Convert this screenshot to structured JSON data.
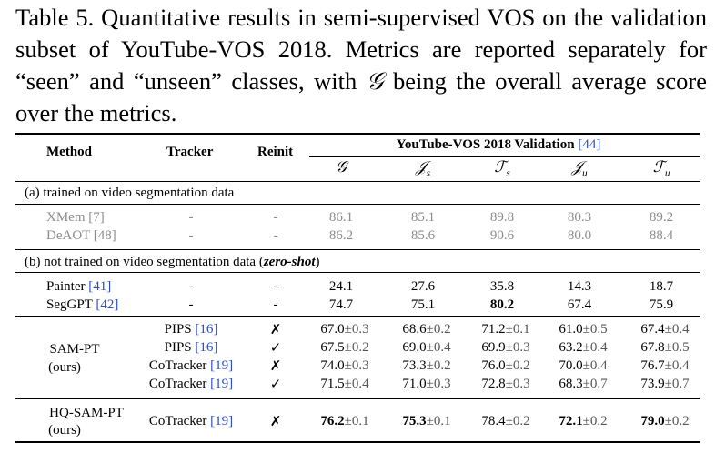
{
  "caption": {
    "label": "Table 5.",
    "text_1": " Quantitative results in semi-supervised VOS on the validation subset of YouTube-VOS 2018. Metrics are reported separately for “seen” and “unseen” classes, with ",
    "g_symbol": "𝒢",
    "text_2": " being the overall average score over the metrics."
  },
  "header": {
    "method": "Method",
    "tracker": "Tracker",
    "reinit": "Reinit",
    "group": "YouTube-VOS 2018 Validation",
    "group_cite": "[44]",
    "metrics": [
      {
        "sym": "𝒢",
        "sub": ""
      },
      {
        "sym": "𝒥",
        "sub": "s"
      },
      {
        "sym": "ℱ",
        "sub": "s"
      },
      {
        "sym": "𝒥",
        "sub": "u"
      },
      {
        "sym": "ℱ",
        "sub": "u"
      }
    ]
  },
  "section_a": "(a) trained on video segmentation data",
  "section_b_prefix": "(b) not trained on video segmentation data (",
  "section_b_em": "zero-shot",
  "section_b_suffix": ")",
  "rows_a": [
    {
      "method": "XMem",
      "cite": "[7]",
      "tracker": "-",
      "reinit": "-",
      "vals": [
        "86.1",
        "85.1",
        "89.8",
        "80.3",
        "89.2"
      ]
    },
    {
      "method": "DeAOT",
      "cite": "[48]",
      "tracker": "-",
      "reinit": "-",
      "vals": [
        "86.2",
        "85.6",
        "90.6",
        "80.0",
        "88.4"
      ]
    }
  ],
  "rows_b": [
    {
      "method": "Painter",
      "cite": "[41]",
      "tracker": "-",
      "reinit": "-",
      "vals": [
        "24.1",
        "27.6",
        "35.8",
        "14.3",
        "18.7"
      ]
    },
    {
      "method": "SegGPT",
      "cite": "[42]",
      "tracker": "-",
      "reinit": "-",
      "vals": [
        "74.7",
        "75.1",
        "80.2",
        "67.4",
        "75.9"
      ]
    }
  ],
  "sam_pt": {
    "name": "SAM-PT",
    "sub": "(ours)",
    "rows": [
      {
        "tracker": "PIPS",
        "cite": "[16]",
        "reinit": "✗",
        "vals": [
          "67.0",
          "68.6",
          "71.2",
          "61.0",
          "67.4"
        ],
        "pm": [
          "±0.3",
          "±0.2",
          "±0.1",
          "±0.5",
          "±0.4"
        ]
      },
      {
        "tracker": "PIPS",
        "cite": "[16]",
        "reinit": "✓",
        "vals": [
          "67.5",
          "69.0",
          "69.9",
          "63.2",
          "67.8"
        ],
        "pm": [
          "±0.2",
          "±0.4",
          "±0.3",
          "±0.4",
          "±0.5"
        ]
      },
      {
        "tracker": "CoTracker",
        "cite": "[19]",
        "reinit": "✗",
        "vals": [
          "74.0",
          "73.3",
          "76.0",
          "70.0",
          "76.7"
        ],
        "pm": [
          "±0.3",
          "±0.2",
          "±0.2",
          "±0.4",
          "±0.4"
        ]
      },
      {
        "tracker": "CoTracker",
        "cite": "[19]",
        "reinit": "✓",
        "vals": [
          "71.5",
          "71.0",
          "72.8",
          "68.3",
          "73.9"
        ],
        "pm": [
          "±0.4",
          "±0.3",
          "±0.3",
          "±0.7",
          "±0.7"
        ]
      }
    ]
  },
  "hq_sam_pt": {
    "name": "HQ-SAM-PT",
    "sub": "(ours)",
    "tracker": "CoTracker",
    "cite": "[19]",
    "reinit": "✗",
    "vals": [
      "76.2",
      "75.3",
      "78.4",
      "72.1",
      "79.0"
    ],
    "pm": [
      "±0.1",
      "±0.1",
      "±0.2",
      "±0.2",
      "±0.2"
    ]
  }
}
